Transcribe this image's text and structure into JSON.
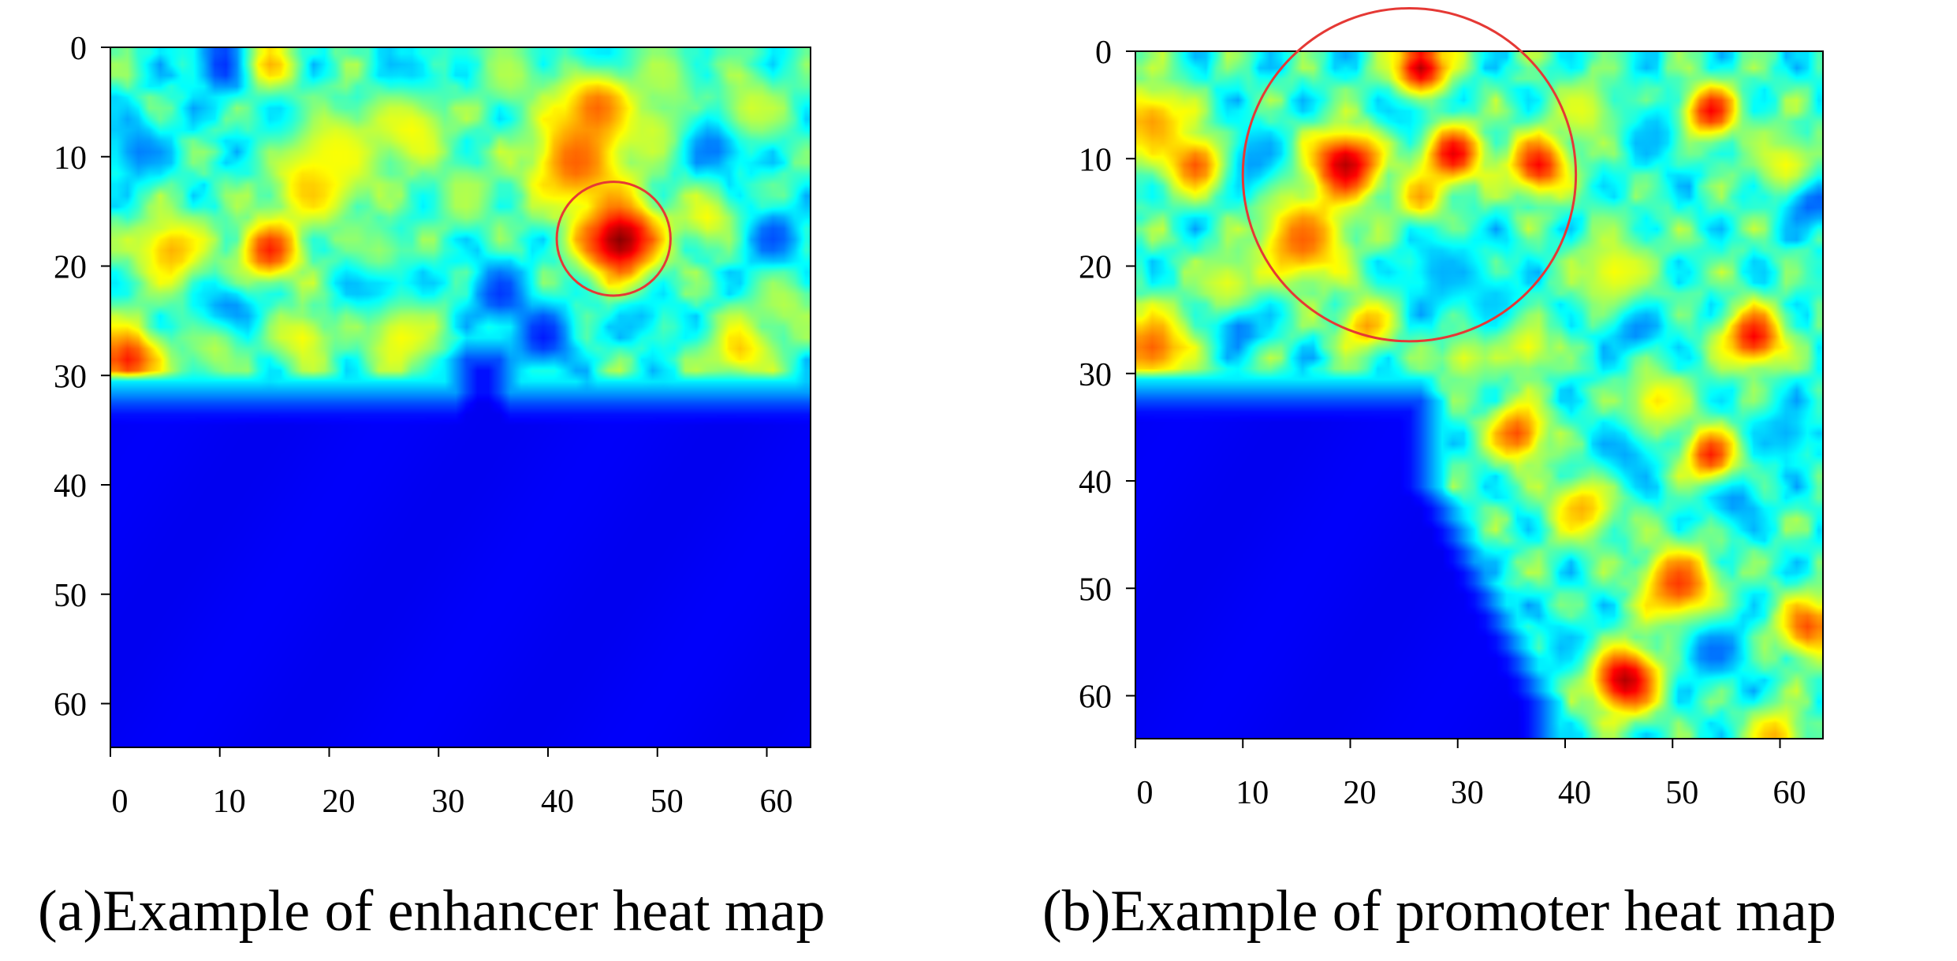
{
  "chart_data": [
    {
      "type": "heatmap",
      "caption": "(a)Example of enhancer heat map",
      "grid_size": 64,
      "x_ticks": [
        0,
        10,
        20,
        30,
        40,
        50,
        60
      ],
      "y_ticks": [
        0,
        10,
        20,
        30,
        40,
        50,
        60
      ],
      "xlim": [
        0,
        64
      ],
      "ylim": [
        0,
        64
      ],
      "colormap": "jet",
      "low_region": {
        "shape": "rows_from",
        "row": 32,
        "notch": {
          "x": [
            32,
            36
          ],
          "to_row": 28
        }
      },
      "hotspots": [
        {
          "x": 46,
          "y": 17,
          "r": 2.6,
          "v": 1.0
        },
        {
          "x": 42,
          "y": 10,
          "r": 3.2,
          "v": 0.78
        },
        {
          "x": 44,
          "y": 5,
          "r": 2.6,
          "v": 0.78
        },
        {
          "x": 14,
          "y": 18,
          "r": 2.0,
          "v": 0.85
        },
        {
          "x": 1,
          "y": 28,
          "r": 2.2,
          "v": 0.85
        },
        {
          "x": 5,
          "y": 18,
          "r": 2.5,
          "v": 0.7
        },
        {
          "x": 18,
          "y": 12,
          "r": 2.5,
          "v": 0.72
        },
        {
          "x": 20,
          "y": 9,
          "r": 3.0,
          "v": 0.62
        },
        {
          "x": 14,
          "y": 1,
          "r": 1.6,
          "v": 0.7
        },
        {
          "x": 27,
          "y": 7,
          "r": 2.6,
          "v": 0.62
        },
        {
          "x": 26,
          "y": 26,
          "r": 2.5,
          "v": 0.62
        },
        {
          "x": 17,
          "y": 26,
          "r": 2.0,
          "v": 0.62
        },
        {
          "x": 57,
          "y": 27,
          "r": 2.0,
          "v": 0.68
        },
        {
          "x": 54,
          "y": 15,
          "r": 1.8,
          "v": 0.62
        },
        {
          "x": 58,
          "y": 5,
          "r": 2.3,
          "v": 0.58
        },
        {
          "x": 49,
          "y": 7,
          "r": 2.0,
          "v": 0.58
        },
        {
          "x": 50,
          "y": 2,
          "r": 2.0,
          "v": 0.55
        },
        {
          "x": 32,
          "y": 13,
          "r": 2.0,
          "v": 0.55
        },
        {
          "x": 9,
          "y": 27,
          "r": 2.0,
          "v": 0.55
        },
        {
          "x": 36,
          "y": 2,
          "r": 2.0,
          "v": 0.55
        },
        {
          "x": 61,
          "y": 23,
          "r": 2.0,
          "v": 0.55
        },
        {
          "x": 24,
          "y": 18,
          "r": 2.0,
          "v": 0.52
        }
      ],
      "coldspots": [
        {
          "x": 10,
          "y": 1,
          "r": 2.0,
          "v": 0.15
        },
        {
          "x": 10,
          "y": 24,
          "r": 2.2,
          "v": 0.2
        },
        {
          "x": 24,
          "y": 21,
          "r": 2.2,
          "v": 0.22
        },
        {
          "x": 35,
          "y": 22,
          "r": 2.0,
          "v": 0.18
        },
        {
          "x": 39,
          "y": 26,
          "r": 2.0,
          "v": 0.15
        },
        {
          "x": 55,
          "y": 8,
          "r": 2.2,
          "v": 0.18
        },
        {
          "x": 60,
          "y": 17,
          "r": 2.0,
          "v": 0.2
        },
        {
          "x": 2,
          "y": 9,
          "r": 2.0,
          "v": 0.25
        },
        {
          "x": 44,
          "y": 1,
          "r": 1.8,
          "v": 0.25
        },
        {
          "x": 27,
          "y": 2,
          "r": 1.8,
          "v": 0.28
        },
        {
          "x": 16,
          "y": 7,
          "r": 1.8,
          "v": 0.3
        },
        {
          "x": 48,
          "y": 24,
          "r": 1.6,
          "v": 0.3
        }
      ],
      "annotation": {
        "shape": "circle",
        "x": 46,
        "y": 17.5,
        "r": 5.2,
        "color": "#e53935"
      }
    },
    {
      "type": "heatmap",
      "caption": "(b)Example of promoter heat map",
      "grid_size": 64,
      "x_ticks": [
        0,
        10,
        20,
        30,
        40,
        50,
        60
      ],
      "y_ticks": [
        0,
        10,
        20,
        30,
        40,
        50,
        60
      ],
      "xlim": [
        0,
        64
      ],
      "ylim": [
        0,
        64
      ],
      "colormap": "jet",
      "low_region": {
        "shape": "block",
        "x_from": 0,
        "x_to_top": 27,
        "x_to_bottom": 38,
        "row": 32
      },
      "hotspots": [
        {
          "x": 26,
          "y": 1,
          "r": 1.8,
          "v": 0.95
        },
        {
          "x": 19,
          "y": 10,
          "r": 2.4,
          "v": 0.95
        },
        {
          "x": 29,
          "y": 9,
          "r": 2.0,
          "v": 0.9
        },
        {
          "x": 37,
          "y": 10,
          "r": 2.0,
          "v": 0.88
        },
        {
          "x": 5,
          "y": 10,
          "r": 2.0,
          "v": 0.8
        },
        {
          "x": 15,
          "y": 17,
          "r": 3.0,
          "v": 0.78
        },
        {
          "x": 1,
          "y": 27,
          "r": 2.6,
          "v": 0.78
        },
        {
          "x": 1,
          "y": 6,
          "r": 2.6,
          "v": 0.72
        },
        {
          "x": 26,
          "y": 13,
          "r": 1.6,
          "v": 0.72
        },
        {
          "x": 53,
          "y": 5,
          "r": 1.8,
          "v": 0.88
        },
        {
          "x": 45,
          "y": 58,
          "r": 2.3,
          "v": 0.95
        },
        {
          "x": 57,
          "y": 26,
          "r": 2.0,
          "v": 0.88
        },
        {
          "x": 53,
          "y": 37,
          "r": 1.8,
          "v": 0.85
        },
        {
          "x": 35,
          "y": 35,
          "r": 2.0,
          "v": 0.8
        },
        {
          "x": 50,
          "y": 49,
          "r": 2.5,
          "v": 0.82
        },
        {
          "x": 62,
          "y": 53,
          "r": 2.0,
          "v": 0.8
        },
        {
          "x": 21,
          "y": 25,
          "r": 1.8,
          "v": 0.72
        },
        {
          "x": 41,
          "y": 42,
          "r": 2.2,
          "v": 0.7
        },
        {
          "x": 48,
          "y": 32,
          "r": 2.0,
          "v": 0.65
        },
        {
          "x": 44,
          "y": 20,
          "r": 2.6,
          "v": 0.62
        },
        {
          "x": 60,
          "y": 10,
          "r": 2.2,
          "v": 0.62
        },
        {
          "x": 41,
          "y": 5,
          "r": 2.2,
          "v": 0.6
        },
        {
          "x": 8,
          "y": 21,
          "r": 2.0,
          "v": 0.6
        },
        {
          "x": 36,
          "y": 27,
          "r": 1.8,
          "v": 0.62
        },
        {
          "x": 59,
          "y": 63,
          "r": 1.8,
          "v": 0.7
        },
        {
          "x": 30,
          "y": 28,
          "r": 1.6,
          "v": 0.6
        }
      ],
      "coldspots": [
        {
          "x": 10,
          "y": 10,
          "r": 2.2,
          "v": 0.25
        },
        {
          "x": 25,
          "y": 5,
          "r": 2.0,
          "v": 0.3
        },
        {
          "x": 28,
          "y": 20,
          "r": 2.5,
          "v": 0.3
        },
        {
          "x": 9,
          "y": 25,
          "r": 1.6,
          "v": 0.2
        },
        {
          "x": 46,
          "y": 25,
          "r": 1.8,
          "v": 0.22
        },
        {
          "x": 62,
          "y": 13,
          "r": 1.8,
          "v": 0.12
        },
        {
          "x": 53,
          "y": 55,
          "r": 2.2,
          "v": 0.22
        },
        {
          "x": 45,
          "y": 37,
          "r": 2.0,
          "v": 0.28
        },
        {
          "x": 55,
          "y": 41,
          "r": 1.8,
          "v": 0.25
        },
        {
          "x": 60,
          "y": 35,
          "r": 2.0,
          "v": 0.3
        },
        {
          "x": 48,
          "y": 7,
          "r": 2.0,
          "v": 0.3
        },
        {
          "x": 40,
          "y": 55,
          "r": 2.0,
          "v": 0.3
        },
        {
          "x": 33,
          "y": 23,
          "r": 2.0,
          "v": 0.32
        }
      ],
      "annotation": {
        "shape": "circle",
        "x": 25.5,
        "y": 11.5,
        "r": 15.5,
        "color": "#e53935"
      }
    }
  ]
}
